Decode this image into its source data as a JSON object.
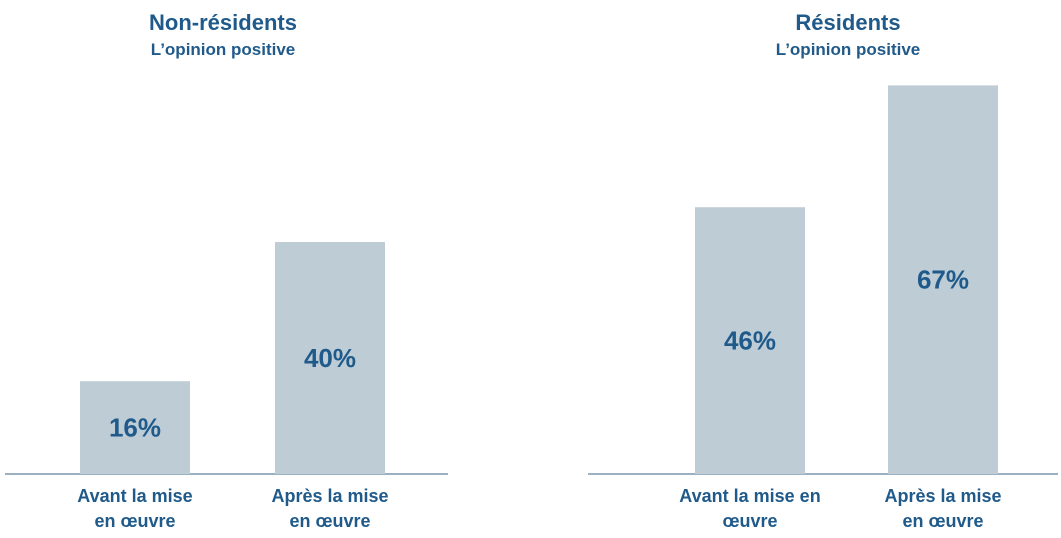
{
  "colors": {
    "bar": "#BECCD6",
    "text": "#1F5A8A",
    "axis": "#7A97AE",
    "background": "#FFFFFF"
  },
  "chart_data": [
    {
      "type": "bar",
      "title": "Non-résidents",
      "subtitle": "L’opinion positive",
      "categories": [
        [
          "Avant la mise",
          "en œuvre"
        ],
        [
          "Après la mise",
          "en œuvre"
        ]
      ],
      "values": [
        16,
        40
      ],
      "data_labels": [
        "16%",
        "40%"
      ],
      "ylim": [
        0,
        70
      ],
      "grid": false,
      "legend": "none"
    },
    {
      "type": "bar",
      "title": "Résidents",
      "subtitle": "L’opinion positive",
      "categories": [
        [
          "Avant la mise en",
          "œuvre"
        ],
        [
          "Après la mise",
          "en œuvre"
        ]
      ],
      "values": [
        46,
        67
      ],
      "data_labels": [
        "46%",
        "67%"
      ],
      "ylim": [
        0,
        70
      ],
      "grid": false,
      "legend": "none"
    }
  ]
}
